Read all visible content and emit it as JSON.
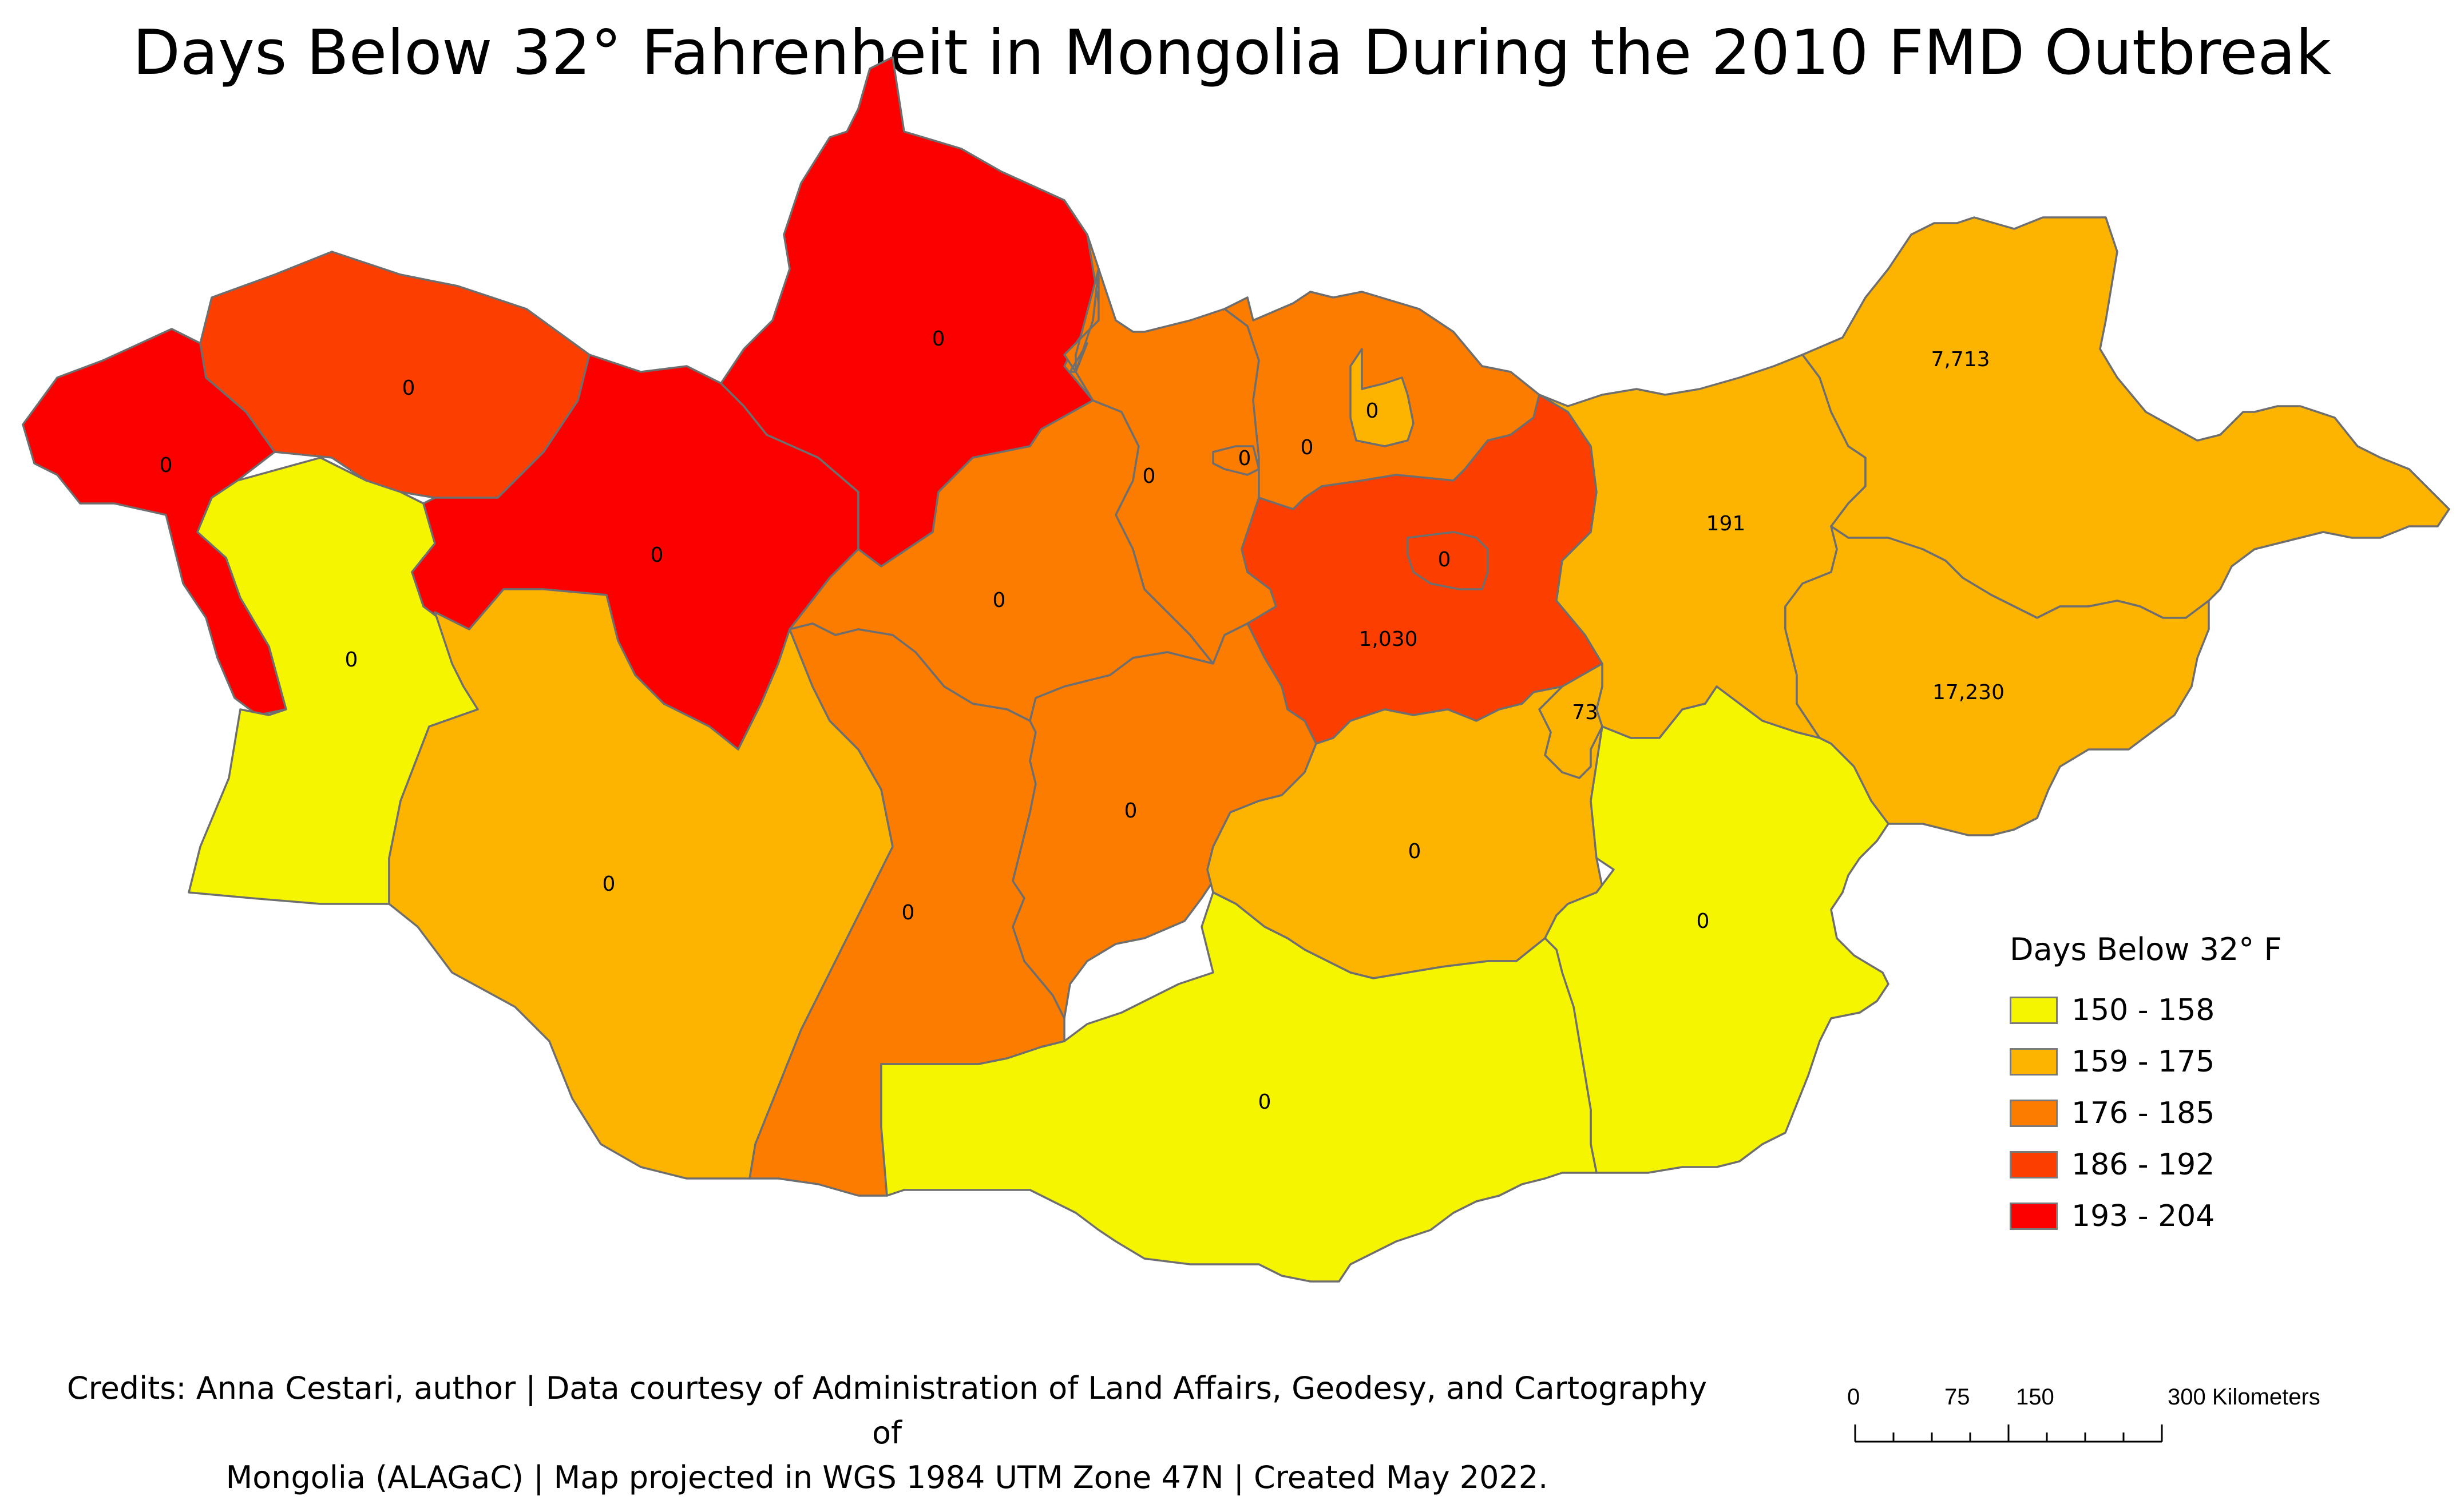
{
  "title": "Days Below 32° Fahrenheit in Mongolia During the 2010 FMD Outbreak",
  "legend": {
    "title": "Days Below 32° F",
    "classes": [
      {
        "label": "150 - 158",
        "color": "#f5f500"
      },
      {
        "label": "159 - 175",
        "color": "#fcb400"
      },
      {
        "label": "176 - 185",
        "color": "#fc7c00"
      },
      {
        "label": "186 - 192",
        "color": "#fc3e00"
      },
      {
        "label": "193 - 204",
        "color": "#fc0000"
      }
    ]
  },
  "regions": [
    {
      "id": "bayan-olgii",
      "value": "0",
      "class": 4
    },
    {
      "id": "uvs",
      "value": "0",
      "class": 3
    },
    {
      "id": "khovd",
      "value": "0",
      "class": 0
    },
    {
      "id": "zavkhan",
      "value": "0",
      "class": 4
    },
    {
      "id": "khovsgol",
      "value": "0",
      "class": 4
    },
    {
      "id": "govi-altai",
      "value": "0",
      "class": 1
    },
    {
      "id": "bulgan",
      "value": "0",
      "class": 2
    },
    {
      "id": "selenge",
      "value": "0",
      "class": 2
    },
    {
      "id": "darkhan-uul",
      "value": "0",
      "class": 1
    },
    {
      "id": "orkhon",
      "value": "0",
      "class": 2
    },
    {
      "id": "arkhangai",
      "value": "0",
      "class": 2
    },
    {
      "id": "tov",
      "value": "1,030",
      "class": 3
    },
    {
      "id": "ulaanbaatar",
      "value": "0",
      "class": 3
    },
    {
      "id": "khentii",
      "value": "191",
      "class": 1
    },
    {
      "id": "dornod",
      "value": "7,713",
      "class": 1
    },
    {
      "id": "sukhbaatar",
      "value": "17,230",
      "class": 1
    },
    {
      "id": "govisumber",
      "value": "73",
      "class": 1
    },
    {
      "id": "bayankhongor",
      "value": "0",
      "class": 2
    },
    {
      "id": "ovorkhangai",
      "value": "0",
      "class": 2
    },
    {
      "id": "dundgovi",
      "value": "0",
      "class": 1
    },
    {
      "id": "dornogovi",
      "value": "0",
      "class": 0
    },
    {
      "id": "omnogovi",
      "value": "0",
      "class": 0
    }
  ],
  "credits": {
    "line1": "Credits: Anna Cestari, author | Data courtesy of Administration of Land Affairs, Geodesy, and Cartography of",
    "line2": "Mongolia (ALAGaC) | Map projected in WGS 1984 UTM Zone 47N | Created May 2022."
  },
  "scale_bar": {
    "ticks": [
      "0",
      "75",
      "150",
      "300 Kilometers"
    ]
  }
}
